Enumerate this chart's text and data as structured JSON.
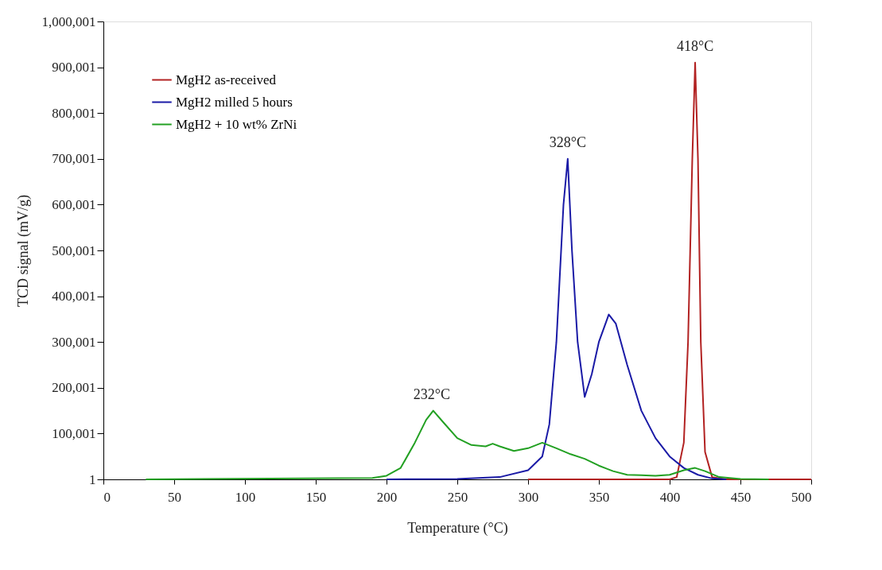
{
  "chart_data": {
    "type": "line",
    "xlabel": "Temperature (°C)",
    "ylabel": "TCD signal (mV/g)",
    "xlim": [
      0,
      500
    ],
    "xticks": [
      0,
      50,
      100,
      150,
      200,
      250,
      300,
      350,
      400,
      450,
      500
    ],
    "ylim": [
      1,
      1000001
    ],
    "yticks": [
      1,
      {
        "value": 100001,
        "label": "100,001"
      },
      {
        "value": 200001,
        "label": "200,001"
      },
      {
        "value": 300001,
        "label": "300,001"
      },
      {
        "value": 400001,
        "label": "400,001"
      },
      {
        "value": 500001,
        "label": "500,001"
      },
      {
        "value": 600001,
        "label": "600,001"
      },
      {
        "value": 700001,
        "label": "700,001"
      },
      {
        "value": 800001,
        "label": "800,001"
      },
      {
        "value": 900001,
        "label": "900,001"
      },
      {
        "value": 1000001,
        "label": "1,000,001"
      }
    ],
    "grid": false,
    "legend": "top left",
    "marker": "none",
    "line_style": "solid",
    "annotations": [
      {
        "text": "418°C",
        "x": 418,
        "y": 910000
      },
      {
        "text": "328°C",
        "x": 328,
        "y": 700000
      },
      {
        "text": "232°C",
        "x": 232,
        "y": 150000
      }
    ],
    "series": [
      {
        "name": "MgH2 as-received",
        "color": "#b22222",
        "x": [
          300,
          400,
          405,
          410,
          413,
          416,
          418,
          420,
          422,
          425,
          430,
          440,
          500
        ],
        "values": [
          1,
          1,
          5000,
          80000,
          300000,
          700000,
          910000,
          700000,
          300000,
          60000,
          5000,
          1,
          1
        ]
      },
      {
        "name": "MgH2 milled 5 hours",
        "color": "#1a1aa6",
        "x": [
          200,
          250,
          280,
          300,
          310,
          315,
          320,
          325,
          328,
          331,
          335,
          340,
          345,
          350,
          357,
          362,
          370,
          380,
          390,
          400,
          410,
          420,
          430,
          440
        ],
        "values": [
          1,
          1000,
          5000,
          20000,
          50000,
          120000,
          300000,
          600000,
          700000,
          500000,
          300000,
          180000,
          230000,
          300000,
          360000,
          340000,
          250000,
          150000,
          90000,
          50000,
          25000,
          10000,
          2000,
          1
        ]
      },
      {
        "name": "MgH2 + 10 wt% ZrNi",
        "color": "#22a022",
        "x": [
          30,
          190,
          200,
          210,
          220,
          228,
          233,
          240,
          250,
          260,
          270,
          275,
          280,
          290,
          300,
          310,
          320,
          330,
          340,
          350,
          360,
          370,
          380,
          390,
          400,
          410,
          418,
          425,
          435,
          450,
          470
        ],
        "values": [
          1,
          3000,
          8000,
          25000,
          80000,
          130000,
          150000,
          125000,
          90000,
          75000,
          72000,
          78000,
          72000,
          62000,
          68000,
          80000,
          68000,
          55000,
          45000,
          30000,
          18000,
          10000,
          9000,
          8000,
          10000,
          20000,
          25000,
          18000,
          5000,
          1000,
          1
        ]
      }
    ]
  }
}
